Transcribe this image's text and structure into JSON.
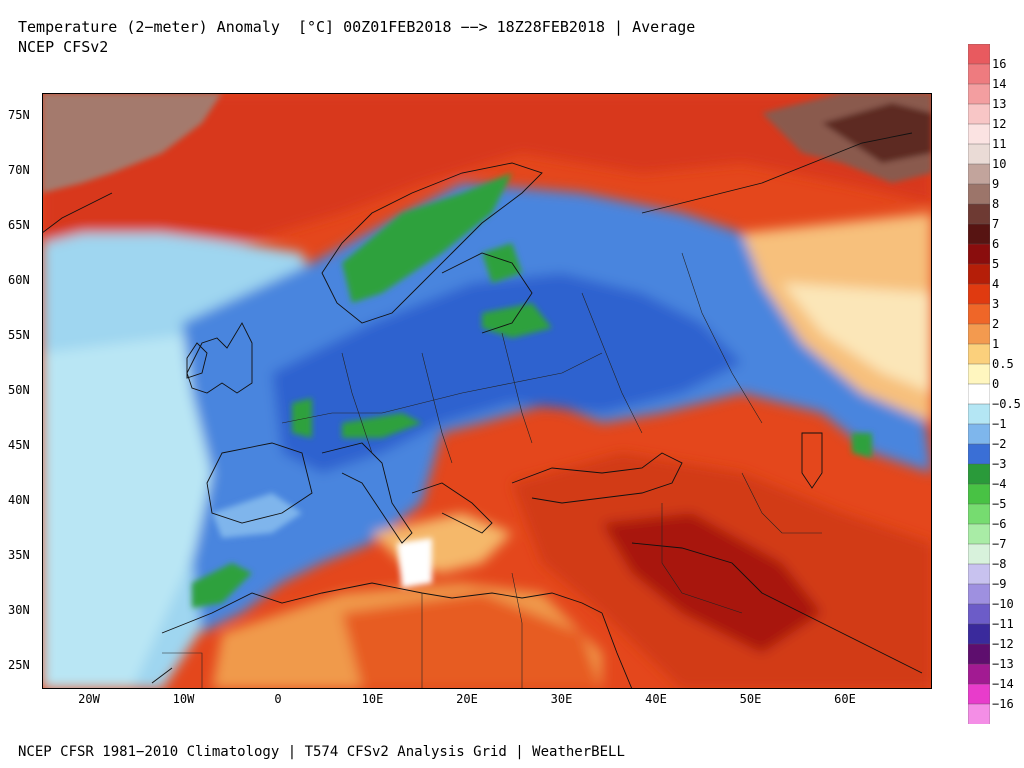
{
  "header": {
    "line1": "Temperature (2−meter) Anomaly  [°C] 00Z01FEB2018 −−> 18Z28FEB2018 | Average",
    "line2": "NCEP CFSv2"
  },
  "footer": {
    "text": "NCEP CFSR 1981−2010 Climatology | T574 CFSv2 Analysis Grid | WeatherBELL"
  },
  "map": {
    "lat_labels": [
      "75N",
      "70N",
      "65N",
      "60N",
      "55N",
      "50N",
      "45N",
      "40N",
      "35N",
      "30N",
      "25N"
    ],
    "lon_labels": [
      "20W",
      "10W",
      "0",
      "10E",
      "20E",
      "30E",
      "40E",
      "50E",
      "60E"
    ]
  },
  "legend": {
    "labels": [
      "16",
      "14",
      "13",
      "12",
      "11",
      "10",
      "9",
      "8",
      "7",
      "6",
      "5",
      "4",
      "3",
      "2",
      "1",
      "0.5",
      "0",
      "−0.5",
      "−1",
      "−2",
      "−3",
      "−4",
      "−5",
      "−6",
      "−7",
      "−8",
      "−9",
      "−10",
      "−11",
      "−12",
      "−13",
      "−14",
      "−16"
    ],
    "colors": [
      "#e85a5f",
      "#ee7b7f",
      "#f39ea0",
      "#f8c6c6",
      "#fbe3e2",
      "#eadbd6",
      "#c2a49c",
      "#9c756a",
      "#6e3a33",
      "#571412",
      "#8a0d0d",
      "#b51e08",
      "#e03a10",
      "#ef6628",
      "#f39a4f",
      "#fbd07c",
      "#fff6bf",
      "#ffffff",
      "#b4e6f4",
      "#7eb6ec",
      "#3a6fd6",
      "#2a9a3a",
      "#48c244",
      "#76dc70",
      "#a9eca6",
      "#d8f2dc",
      "#c8c2ef",
      "#9e90e0",
      "#6c5cc8",
      "#3a2a9c",
      "#5e0e6e",
      "#a21a92",
      "#e83ccb",
      "#f48ee6"
    ]
  },
  "colors": {
    "arctic": "#8f6a5e",
    "warm_dark": "#a8120c",
    "warm": "#d9361a",
    "warm_mid": "#ec6a2c",
    "warm_light": "#f6a14e",
    "warm_pale": "#fbd57f",
    "neutral": "#ffffff",
    "cool_pale": "#b4e6f4",
    "cool": "#7eb6ec",
    "cool_mid": "#4f8fe0",
    "cold": "#2f64d0",
    "coldest": "#2e9e3c"
  }
}
